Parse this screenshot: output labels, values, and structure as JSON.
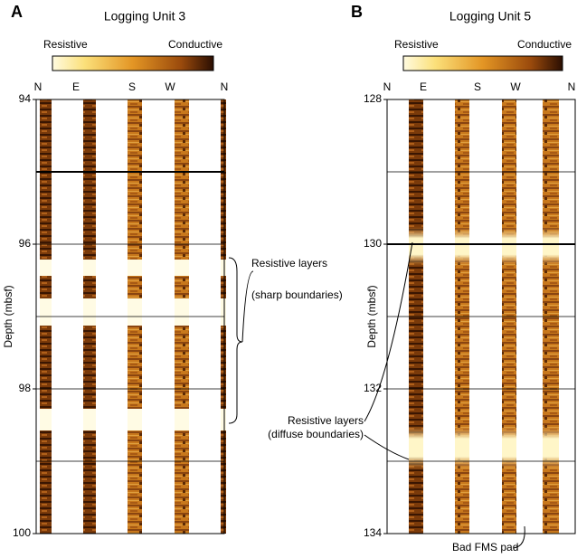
{
  "panels": [
    {
      "letter": "A",
      "title": "Logging Unit 3",
      "colorbar": {
        "low": "Resistive",
        "high": "Conductive"
      },
      "directions": [
        "N",
        "E",
        "S",
        "W",
        "N"
      ],
      "depth_ticks": [
        "94",
        "96",
        "98",
        "100"
      ],
      "axis_label": "Depth (mbsf)",
      "annotations": [
        {
          "lines": [
            "Resistive layers",
            "(sharp boundaries)"
          ]
        }
      ]
    },
    {
      "letter": "B",
      "title": "Logging Unit 5",
      "colorbar": {
        "low": "Resistive",
        "high": "Conductive"
      },
      "directions": [
        "N",
        "E",
        "S",
        "W",
        "N"
      ],
      "depth_ticks": [
        "128",
        "130",
        "132",
        "134"
      ],
      "axis_label": "Depth (mbsf)",
      "annotations": [
        {
          "lines": [
            "Resistive layers",
            "(diffuse boundaries)"
          ]
        },
        {
          "lines": [
            "Bad FMS pad"
          ]
        }
      ]
    }
  ]
}
